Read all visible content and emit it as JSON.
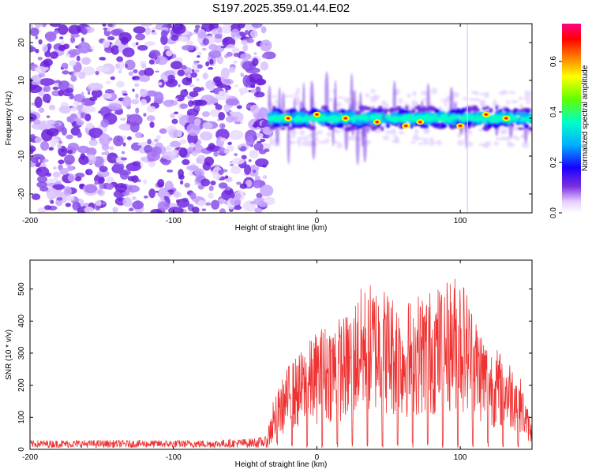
{
  "title": "S197.2025.359.01.44.E02",
  "chart_data": [
    {
      "type": "heatmap",
      "title": "S197.2025.359.01.44.E02",
      "xlabel": "Height of straight line (km)",
      "ylabel": "Frequency (Hz)",
      "xlim": [
        -200,
        150
      ],
      "ylim": [
        -25,
        25
      ],
      "xticks": [
        -200,
        -100,
        0,
        100
      ],
      "yticks": [
        -20,
        -10,
        0,
        10,
        20
      ],
      "colorbar": {
        "label": "Normalized spectral amplitude",
        "range": [
          0.0,
          0.75
        ],
        "ticks": [
          0.0,
          0.2,
          0.4,
          0.6
        ],
        "colormap": [
          "#ffffff",
          "#e6ccff",
          "#7b2fe0",
          "#1a00ff",
          "#00b0ff",
          "#00ffc8",
          "#60ff00",
          "#ffff00",
          "#ff8000",
          "#ff0000",
          "#ff0088"
        ]
      },
      "regions": [
        {
          "name": "noise",
          "x_range": [
            -200,
            -33
          ],
          "f_range": [
            -25,
            25
          ],
          "amplitude": 0.05
        },
        {
          "name": "signal band",
          "x_range": [
            -33,
            150
          ],
          "f_center": 0,
          "f_halfwidth": 3,
          "amplitude_max": 0.75
        }
      ],
      "hot_spots": [
        {
          "x": -20,
          "f": 0
        },
        {
          "x": 0,
          "f": 1
        },
        {
          "x": 20,
          "f": 0
        },
        {
          "x": 42,
          "f": -1
        },
        {
          "x": 62,
          "f": -2
        },
        {
          "x": 72,
          "f": -1
        },
        {
          "x": 100,
          "f": -2
        },
        {
          "x": 118,
          "f": 1
        },
        {
          "x": 132,
          "f": 0
        }
      ]
    },
    {
      "type": "line",
      "xlabel": "Height of straight line (km)",
      "ylabel": "SNR (10 * v/v)",
      "xlim": [
        -200,
        150
      ],
      "ylim": [
        0,
        590
      ],
      "xticks": [
        -200,
        -100,
        0,
        100
      ],
      "yticks": [
        0,
        100,
        200,
        300,
        400,
        500
      ],
      "series": [
        {
          "name": "SNR",
          "color": "#ee3333",
          "x": [
            -200,
            -175,
            -150,
            -125,
            -100,
            -75,
            -50,
            -35,
            -28,
            -20,
            -10,
            0,
            10,
            20,
            30,
            40,
            50,
            60,
            70,
            80,
            90,
            100,
            110,
            120,
            130,
            140,
            150
          ],
          "values": [
            15,
            15,
            15,
            15,
            15,
            15,
            18,
            22,
            150,
            220,
            260,
            310,
            340,
            350,
            420,
            440,
            420,
            380,
            410,
            420,
            440,
            470,
            360,
            280,
            250,
            220,
            60
          ]
        }
      ]
    }
  ]
}
